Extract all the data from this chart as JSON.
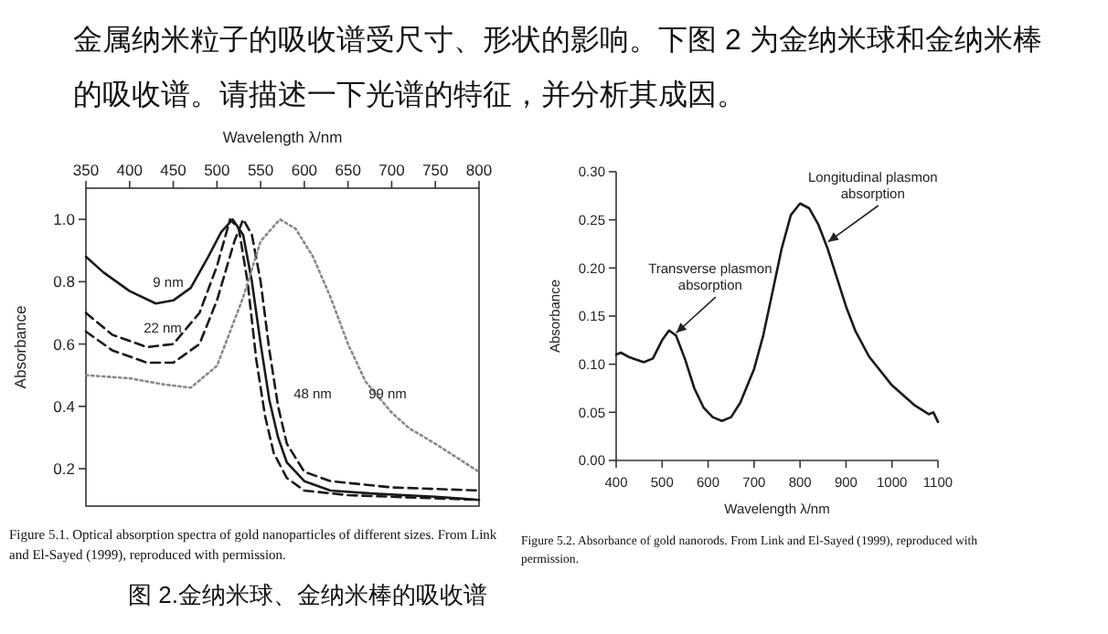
{
  "chart_data": [
    {
      "type": "line",
      "xlabel": "Wavelength λ/nm",
      "ylabel": "Absorbance",
      "xlim": [
        350,
        800
      ],
      "xticks": [
        350,
        400,
        450,
        500,
        550,
        600,
        650,
        700,
        750,
        800
      ],
      "ylim": [
        0.08,
        1.1
      ],
      "yticks": [
        0.2,
        0.4,
        0.6,
        0.8,
        {
          "value": 1.0,
          "label": "1.0"
        }
      ],
      "grid": false,
      "series": [
        {
          "name": "9 nm",
          "color": "#1a1a1a",
          "line_style": "solid",
          "x": [
            350,
            370,
            400,
            430,
            450,
            470,
            490,
            505,
            518,
            530,
            540,
            550,
            560,
            570,
            580,
            600,
            630,
            680,
            750,
            800
          ],
          "values": [
            0.88,
            0.83,
            0.77,
            0.73,
            0.74,
            0.78,
            0.88,
            0.96,
            1.0,
            0.95,
            0.8,
            0.6,
            0.42,
            0.3,
            0.22,
            0.16,
            0.13,
            0.12,
            0.11,
            0.1
          ]
        },
        {
          "name": "22 nm",
          "color": "#1a1a1a",
          "line_style": "dashed",
          "x": [
            350,
            380,
            420,
            450,
            480,
            500,
            515,
            525,
            535,
            545,
            555,
            565,
            580,
            600,
            650,
            700,
            800
          ],
          "values": [
            0.7,
            0.63,
            0.59,
            0.6,
            0.7,
            0.85,
            1.0,
            0.97,
            0.8,
            0.55,
            0.37,
            0.25,
            0.17,
            0.13,
            0.115,
            0.11,
            0.1
          ]
        },
        {
          "name": "48 nm",
          "color": "#1a1a1a",
          "line_style": "dashed",
          "x": [
            350,
            380,
            420,
            450,
            480,
            500,
            520,
            530,
            540,
            550,
            560,
            570,
            580,
            600,
            630,
            700,
            800
          ],
          "values": [
            0.64,
            0.58,
            0.54,
            0.54,
            0.6,
            0.74,
            0.93,
            1.0,
            0.95,
            0.8,
            0.58,
            0.4,
            0.28,
            0.19,
            0.16,
            0.14,
            0.13
          ]
        },
        {
          "name": "99 nm",
          "color": "#888888",
          "line_style": "dotted",
          "x": [
            350,
            400,
            440,
            470,
            500,
            530,
            550,
            572,
            590,
            610,
            630,
            650,
            670,
            700,
            720,
            750,
            800
          ],
          "values": [
            0.5,
            0.49,
            0.47,
            0.46,
            0.53,
            0.75,
            0.93,
            1.0,
            0.97,
            0.88,
            0.75,
            0.6,
            0.48,
            0.38,
            0.33,
            0.28,
            0.19
          ]
        }
      ],
      "annotations": [
        "金属纳米粒子的吸收谱受尺寸、形状的影响。下图 2 为金纳米球和金纳米棒的吸收谱。请描述一下光谱的特征，并分析其成因。",
        "Figure 5.1. Optical absorption spectra of gold nanoparticles of different sizes. From Link and El-Sayed (1999), reproduced with permission."
      ]
    },
    {
      "type": "line",
      "xlabel": "Wavelength λ/nm",
      "ylabel": "Absorbance",
      "xlim": [
        400,
        1100
      ],
      "xticks": [
        400,
        500,
        600,
        700,
        800,
        900,
        1000,
        1100
      ],
      "ylim": [
        0,
        0.3
      ],
      "yticks": [
        {
          "value": 0,
          "label": "0.00"
        },
        0.05,
        {
          "value": 0.1,
          "label": "0.10"
        },
        0.15,
        {
          "value": 0.2,
          "label": "0.20"
        },
        0.25,
        {
          "value": 0.3,
          "label": "0.30"
        }
      ],
      "grid": false,
      "series": [
        {
          "color": "#1a1a1a",
          "line_style": "solid",
          "x": [
            400,
            410,
            430,
            460,
            480,
            500,
            515,
            530,
            550,
            570,
            590,
            610,
            630,
            650,
            670,
            700,
            720,
            740,
            760,
            780,
            800,
            820,
            840,
            860,
            880,
            900,
            920,
            950,
            1000,
            1050,
            1080,
            1090,
            1100
          ],
          "values": [
            0.11,
            0.112,
            0.107,
            0.102,
            0.106,
            0.125,
            0.135,
            0.13,
            0.105,
            0.075,
            0.055,
            0.045,
            0.041,
            0.045,
            0.06,
            0.095,
            0.13,
            0.175,
            0.22,
            0.255,
            0.267,
            0.262,
            0.245,
            0.22,
            0.19,
            0.16,
            0.135,
            0.108,
            0.078,
            0.057,
            0.048,
            0.05,
            0.04
          ]
        }
      ],
      "annotations": [
        "Figure 5.2. Absorbance of gold nanorods. From Link and El-Sayed (1999), reproduced with permission.",
        "图 2.金纳米球、金纳米棒的吸收谱",
        {
          "text": "Transverse plasmon absorption",
          "x": 525,
          "y": 0.13
        },
        {
          "text": "Longitudinal plasmon absorption",
          "x": 855,
          "y": 0.225
        }
      ]
    }
  ]
}
